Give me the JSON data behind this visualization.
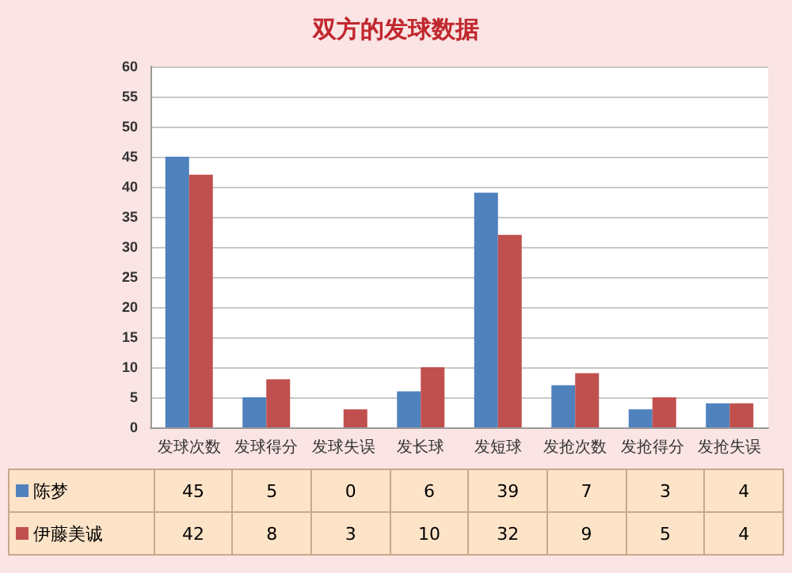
{
  "chart_data": {
    "type": "bar",
    "title": "双方的发球数据",
    "categories": [
      "发球次数",
      "发球得分",
      "发球失误",
      "发长球",
      "发短球",
      "发抢次数",
      "发抢得分",
      "发抢失误"
    ],
    "series": [
      {
        "name": "陈梦",
        "color": "#4f81bd",
        "values": [
          45,
          5,
          0,
          6,
          39,
          7,
          3,
          4
        ]
      },
      {
        "name": "伊藤美诚",
        "color": "#c0504d",
        "values": [
          42,
          8,
          3,
          10,
          32,
          9,
          5,
          4
        ]
      }
    ],
    "ylim": [
      0,
      60
    ],
    "yticks": [
      0,
      5,
      10,
      15,
      20,
      25,
      30,
      35,
      40,
      45,
      50,
      55,
      60
    ],
    "grid": "y",
    "legend": "bottom",
    "data_labels": true
  }
}
